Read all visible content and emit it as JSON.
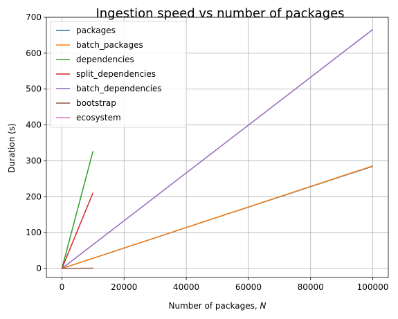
{
  "chart_data": {
    "type": "line",
    "title": "Ingestion speed vs number of packages",
    "xlabel_prefix": "Number of packages, ",
    "xlabel_var": "N",
    "ylabel": "Duration (s)",
    "xlim": [
      -5000,
      105000
    ],
    "ylim": [
      -25,
      700
    ],
    "xticks": [
      0,
      20000,
      40000,
      60000,
      80000,
      100000
    ],
    "yticks": [
      0,
      100,
      200,
      300,
      400,
      500,
      600,
      700
    ],
    "grid": true,
    "legend_position": "top-left",
    "series": [
      {
        "name": "packages",
        "color": "#1f77b4",
        "x": [
          0,
          100000
        ],
        "y": [
          0,
          285
        ]
      },
      {
        "name": "batch_packages",
        "color": "#ff7f0e",
        "x": [
          0,
          100000
        ],
        "y": [
          0,
          286
        ]
      },
      {
        "name": "dependencies",
        "color": "#2ca02c",
        "x": [
          0,
          10000
        ],
        "y": [
          0,
          327
        ]
      },
      {
        "name": "split_dependencies",
        "color": "#d62728",
        "x": [
          0,
          10000
        ],
        "y": [
          0,
          211
        ]
      },
      {
        "name": "batch_dependencies",
        "color": "#9467bd",
        "x": [
          0,
          100000
        ],
        "y": [
          0,
          666
        ]
      },
      {
        "name": "bootstrap",
        "color": "#8c564b",
        "x": [
          0,
          10000
        ],
        "y": [
          0,
          1
        ]
      },
      {
        "name": "ecosystem",
        "color": "#e377c2",
        "x": [],
        "y": []
      }
    ]
  }
}
